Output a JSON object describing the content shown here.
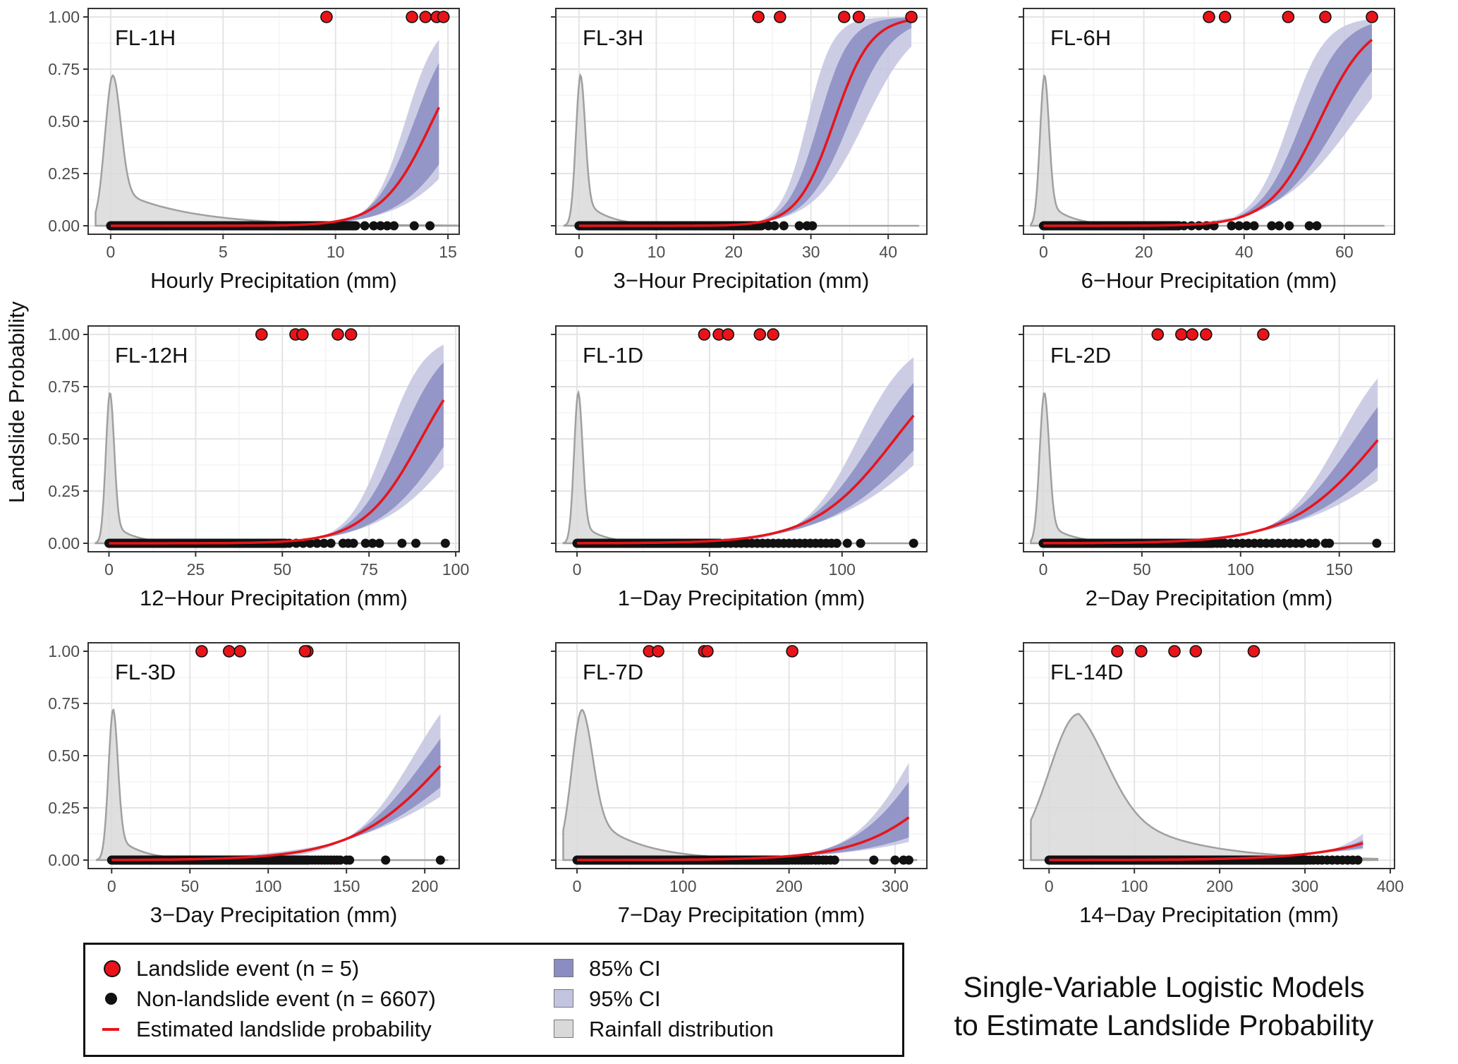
{
  "figure": {
    "y_axis_label": "Landslide Probability",
    "caption_line1": "Single-Variable Logistic Models",
    "caption_line2": "to Estimate Landslide Probability"
  },
  "colors": {
    "landslide": "#e8141a",
    "nonlandslide": "#111111",
    "ci85": "#8a8cc2",
    "ci95": "#c3c4e0",
    "rainfall": "#d9d9d9",
    "rainfall_edge": "#a0a0a0",
    "curve": "#e8141a"
  },
  "legend": {
    "landslide": "Landslide event (n = 5)",
    "nonlandslide": "Non-landslide event (n = 6607)",
    "curve": "Estimated landslide probability",
    "ci85": "85% CI",
    "ci95": "95% CI",
    "rainfall": "Rainfall distribution"
  },
  "chart_data": [
    {
      "type": "scatter",
      "id": "FL-1H",
      "title": "FL-1H",
      "xlabel": "Hourly Precipitation (mm)",
      "ylabel": "Landslide Probability",
      "xlim": [
        -1,
        15.5
      ],
      "xticks": [
        0,
        5,
        10,
        15
      ],
      "ylim": [
        0,
        1
      ],
      "yticks": [
        "0.00",
        "0.25",
        "0.50",
        "0.75",
        "1.00"
      ],
      "landslide_x": [
        9.6,
        13.4,
        14.0,
        14.5,
        14.8
      ],
      "nonlandslide_x": [
        11.3,
        11.7,
        12.0,
        12.3,
        12.6,
        13.5,
        14.2
      ],
      "nonlandslide_dense_max": 10.9,
      "logistic": {
        "x0": 14.3,
        "k": 0.9,
        "xmax": 14.6
      },
      "ci85": {
        "k_low": 0.73,
        "k_high": 1.15,
        "x0_low": 15.8,
        "x0_high": 13.5
      },
      "ci95": {
        "k_low": 0.62,
        "k_high": 1.4,
        "x0_low": 16.6,
        "x0_high": 13.1
      },
      "density": {
        "peak_x": 0.1,
        "peak": 0.72,
        "spread": 0.35,
        "tail": 3.2,
        "tail_weight": 0.25,
        "xmax": 15.5
      }
    },
    {
      "type": "scatter",
      "id": "FL-3H",
      "title": "FL-3H",
      "xlabel": "3−Hour Precipitation (mm)",
      "ylabel": "Landslide Probability",
      "xlim": [
        -3,
        45
      ],
      "xticks": [
        0,
        10,
        20,
        30,
        40
      ],
      "ylim": [
        0,
        1
      ],
      "yticks": [
        "0.00",
        "0.25",
        "0.50",
        "0.75",
        "1.00"
      ],
      "landslide_x": [
        23.2,
        26.0,
        34.3,
        36.2,
        43.0
      ],
      "nonlandslide_x": [
        24.5,
        25.3,
        26.5,
        28.5,
        29.5,
        30.2
      ],
      "nonlandslide_dense_max": 23.6,
      "logistic": {
        "x0": 33.0,
        "k": 0.42,
        "xmax": 43.0
      },
      "ci85": {
        "k_low": 0.36,
        "k_high": 0.5,
        "x0_low": 35.0,
        "x0_high": 31.0
      },
      "ci95": {
        "k_low": 0.3,
        "k_high": 0.6,
        "x0_low": 37.0,
        "x0_high": 29.5
      },
      "density": {
        "peak_x": 0.2,
        "peak": 0.72,
        "spread": 0.6,
        "tail": 3.0,
        "tail_weight": 0.2,
        "xmax": 44
      }
    },
    {
      "type": "scatter",
      "id": "FL-6H",
      "title": "FL-6H",
      "xlabel": "6−Hour Precipitation (mm)",
      "ylabel": "Landslide Probability",
      "xlim": [
        -4,
        70
      ],
      "xticks": [
        0,
        20,
        40,
        60
      ],
      "ylim": [
        0,
        1
      ],
      "yticks": [
        "0.00",
        "0.25",
        "0.50",
        "0.75",
        "1.00"
      ],
      "landslide_x": [
        33.0,
        36.2,
        48.8,
        56.2,
        65.5
      ],
      "nonlandslide_x": [
        28.0,
        29.5,
        31.0,
        32.5,
        34.0,
        37.5,
        39.0,
        40.5,
        42.0,
        45.5,
        47.0,
        49.0,
        53.0,
        54.5
      ],
      "nonlandslide_dense_max": 27,
      "logistic": {
        "x0": 55.0,
        "k": 0.2,
        "xmax": 65.5
      },
      "ci85": {
        "k_low": 0.16,
        "k_high": 0.24,
        "x0_low": 59.0,
        "x0_high": 51.5
      },
      "ci95": {
        "k_low": 0.13,
        "k_high": 0.28,
        "x0_low": 62.0,
        "x0_high": 49.0
      },
      "density": {
        "peak_x": 0.2,
        "peak": 0.72,
        "spread": 0.9,
        "tail": 4.5,
        "tail_weight": 0.18,
        "xmax": 68
      }
    },
    {
      "type": "scatter",
      "id": "FL-12H",
      "title": "FL-12H",
      "xlabel": "12−Hour Precipitation (mm)",
      "ylabel": "Landslide Probability",
      "xlim": [
        -6,
        101
      ],
      "xticks": [
        0,
        25,
        50,
        75,
        100
      ],
      "ylim": [
        0,
        1
      ],
      "yticks": [
        "0.00",
        "0.25",
        "0.50",
        "0.75",
        "1.00"
      ],
      "landslide_x": [
        44.0,
        53.8,
        55.8,
        66.0,
        69.8
      ],
      "nonlandslide_x": [
        52,
        54,
        56,
        58,
        60,
        62,
        64,
        67.5,
        69,
        70.5,
        74,
        76,
        78,
        84.5,
        88.5,
        97
      ],
      "nonlandslide_dense_max": 51,
      "logistic": {
        "x0": 90.0,
        "k": 0.12,
        "xmax": 96.5
      },
      "ci85": {
        "k_low": 0.1,
        "k_high": 0.15,
        "x0_low": 98.0,
        "x0_high": 84.0
      },
      "ci95": {
        "k_low": 0.085,
        "k_high": 0.18,
        "x0_low": 103.0,
        "x0_high": 80.0
      },
      "density": {
        "peak_x": 0.3,
        "peak": 0.72,
        "spread": 1.2,
        "tail": 6.0,
        "tail_weight": 0.15,
        "xmax": 97
      }
    },
    {
      "type": "scatter",
      "id": "FL-1D",
      "title": "FL-1D",
      "xlabel": "1−Day Precipitation (mm)",
      "ylabel": "Landslide Probability",
      "xlim": [
        -8,
        132
      ],
      "xticks": [
        0,
        50,
        100
      ],
      "ylim": [
        0,
        1
      ],
      "yticks": [
        "0.00",
        "0.25",
        "0.50",
        "0.75",
        "1.00"
      ],
      "landslide_x": [
        48.0,
        53.5,
        57.0,
        69.0,
        74.0
      ],
      "nonlandslide_x": [
        56,
        58,
        60,
        62,
        64,
        66,
        68,
        70,
        72,
        74,
        76,
        78,
        80,
        82,
        84,
        86,
        88,
        90,
        92,
        94,
        96,
        98,
        102,
        107,
        127
      ],
      "nonlandslide_dense_max": 54,
      "logistic": {
        "x0": 120.0,
        "k": 0.065,
        "xmax": 127.0
      },
      "ci85": {
        "k_low": 0.055,
        "k_high": 0.08,
        "x0_low": 131.0,
        "x0_high": 112.0
      },
      "ci95": {
        "k_low": 0.047,
        "k_high": 0.1,
        "x0_low": 138.0,
        "x0_high": 106.0
      },
      "density": {
        "peak_x": 0.5,
        "peak": 0.72,
        "spread": 1.6,
        "tail": 8.0,
        "tail_weight": 0.15,
        "xmax": 128
      }
    },
    {
      "type": "scatter",
      "id": "FL-2D",
      "title": "FL-2D",
      "xlabel": "2−Day Precipitation (mm)",
      "ylabel": "Landslide Probability",
      "xlim": [
        -10,
        178
      ],
      "xticks": [
        0,
        50,
        100,
        150
      ],
      "ylim": [
        0,
        1
      ],
      "yticks": [
        "0.00",
        "0.25",
        "0.50",
        "0.75",
        "1.00"
      ],
      "landslide_x": [
        58.0,
        70.0,
        75.5,
        82.5,
        111.5
      ],
      "nonlandslide_x": [
        86,
        88,
        90,
        92,
        95,
        98,
        101,
        104,
        107,
        110,
        113,
        116,
        119,
        122,
        125,
        128,
        131,
        135,
        138,
        143,
        145,
        169
      ],
      "nonlandslide_dense_max": 85,
      "logistic": {
        "x0": 170.0,
        "k": 0.045,
        "xmax": 169.5
      },
      "ci85": {
        "k_low": 0.038,
        "k_high": 0.055,
        "x0_low": 184.0,
        "x0_high": 158.0
      },
      "ci95": {
        "k_low": 0.032,
        "k_high": 0.068,
        "x0_low": 196.0,
        "x0_high": 150.0
      },
      "density": {
        "peak_x": 0.6,
        "peak": 0.72,
        "spread": 2.4,
        "tail": 12.0,
        "tail_weight": 0.15,
        "xmax": 170
      }
    },
    {
      "type": "scatter",
      "id": "FL-3D",
      "title": "FL-3D",
      "xlabel": "3−Day Precipitation (mm)",
      "ylabel": "Landslide Probability",
      "xlim": [
        -15,
        222
      ],
      "xticks": [
        0,
        50,
        100,
        150,
        200
      ],
      "ylim": [
        0,
        1
      ],
      "yticks": [
        "0.00",
        "0.25",
        "0.50",
        "0.75",
        "1.00"
      ],
      "landslide_x": [
        57.5,
        75.0,
        82.0,
        125.0,
        123.5
      ],
      "nonlandslide_x": [
        128,
        130,
        132,
        134,
        136,
        138,
        140,
        142,
        144,
        146,
        150,
        152,
        175,
        210
      ],
      "nonlandslide_dense_max": 126,
      "logistic": {
        "x0": 216.0,
        "k": 0.033,
        "xmax": 210.0
      },
      "ci85": {
        "k_low": 0.027,
        "k_high": 0.041,
        "x0_low": 233.0,
        "x0_high": 202.0
      },
      "ci95": {
        "k_low": 0.023,
        "k_high": 0.05,
        "x0_low": 246.0,
        "x0_high": 193.0
      },
      "density": {
        "peak_x": 1.0,
        "peak": 0.72,
        "spread": 3.0,
        "tail": 16.0,
        "tail_weight": 0.18,
        "xmax": 215
      }
    },
    {
      "type": "scatter",
      "id": "FL-7D",
      "title": "FL-7D",
      "xlabel": "7−Day Precipitation (mm)",
      "ylabel": "Landslide Probability",
      "xlim": [
        -20,
        330
      ],
      "xticks": [
        0,
        100,
        200,
        300
      ],
      "ylim": [
        0,
        1
      ],
      "yticks": [
        "0.00",
        "0.25",
        "0.50",
        "0.75",
        "1.00"
      ],
      "landslide_x": [
        68.0,
        76.5,
        120.0,
        123.0,
        203.0
      ],
      "nonlandslide_x": [
        200,
        203,
        206,
        209,
        212,
        215,
        218,
        221,
        225,
        228,
        232,
        235,
        239,
        243,
        280,
        300,
        308,
        313
      ],
      "nonlandslide_dense_max": 198,
      "logistic": {
        "x0": 372.0,
        "k": 0.023,
        "xmax": 313.0
      },
      "ci85": {
        "k_low": 0.018,
        "k_high": 0.03,
        "x0_low": 430.0,
        "x0_high": 330.0
      },
      "ci95": {
        "k_low": 0.015,
        "k_high": 0.035,
        "x0_low": 470.0,
        "x0_high": 317.0
      },
      "density": {
        "peak_x": 5.0,
        "peak": 0.72,
        "spread": 10.0,
        "tail": 45.0,
        "tail_weight": 0.35,
        "xmax": 320
      }
    },
    {
      "type": "scatter",
      "id": "FL-14D",
      "title": "FL-14D",
      "xlabel": "14−Day Precipitation (mm)",
      "ylabel": "Landslide Probability",
      "xlim": [
        -30,
        405
      ],
      "xticks": [
        0,
        100,
        200,
        300,
        400
      ],
      "ylim": [
        0,
        1
      ],
      "yticks": [
        "0.00",
        "0.25",
        "0.50",
        "0.75",
        "1.00"
      ],
      "landslide_x": [
        80.0,
        108.0,
        147.0,
        172.0,
        240.0
      ],
      "nonlandslide_x": [
        302,
        306,
        310,
        315,
        320,
        326,
        332,
        338,
        344,
        350,
        356,
        362
      ],
      "nonlandslide_dense_max": 300,
      "logistic": {
        "x0": 520.0,
        "k": 0.016,
        "xmax": 368.0
      },
      "ci85": {
        "k_low": 0.011,
        "k_high": 0.022,
        "x0_low": 620.0,
        "x0_high": 470.0
      },
      "ci95": {
        "k_low": 0.009,
        "k_high": 0.027,
        "x0_low": 690.0,
        "x0_high": 440.0
      },
      "density": {
        "peak_x": 35.0,
        "peak": 0.7,
        "spread": 35.0,
        "tail": 85.0,
        "tail_weight": 0.55,
        "xmax": 385
      }
    }
  ]
}
